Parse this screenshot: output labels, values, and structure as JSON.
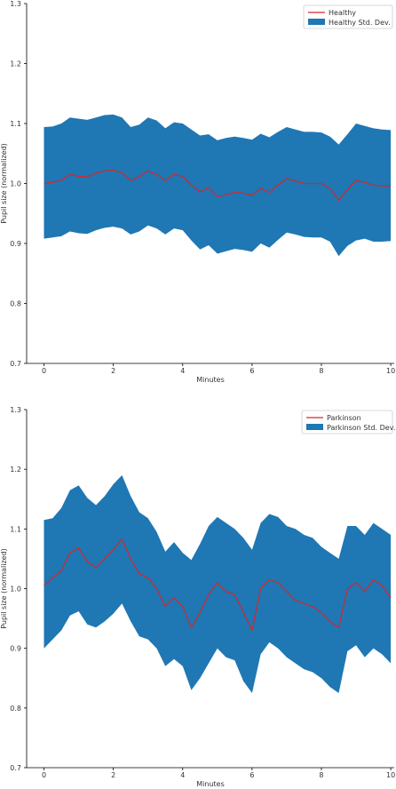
{
  "chart_data": [
    {
      "type": "line",
      "xlabel": "Minutes",
      "ylabel": "Pupil size (normalized)",
      "xlim": [
        -0.5,
        10.1
      ],
      "ylim": [
        0.7,
        1.3
      ],
      "xticks": [
        0,
        2,
        4,
        6,
        8,
        10
      ],
      "yticks": [
        0.7,
        0.8,
        0.9,
        1.0,
        1.1,
        1.2,
        1.3
      ],
      "ytick_labels": [
        "0.7",
        "0.8",
        "0.9",
        "1.0",
        "1.1",
        "1.2",
        "1.3"
      ],
      "legend_position": "top-right",
      "legend": {
        "line": "Healthy",
        "band": "Healthy Std. Dev."
      },
      "colors": {
        "line": "#d62728",
        "band": "#1f77b4"
      },
      "x": [
        0,
        0.25,
        0.5,
        0.75,
        1,
        1.25,
        1.5,
        1.75,
        2,
        2.25,
        2.5,
        2.75,
        3,
        3.25,
        3.5,
        3.75,
        4,
        4.25,
        4.5,
        4.75,
        5,
        5.25,
        5.5,
        5.75,
        6,
        6.25,
        6.5,
        6.75,
        7,
        7.25,
        7.5,
        7.75,
        8,
        8.25,
        8.5,
        8.75,
        9,
        9.25,
        9.5,
        9.75,
        10
      ],
      "series": [
        {
          "name": "Healthy",
          "values": [
            1.0,
            1.002,
            1.005,
            1.015,
            1.012,
            1.011,
            1.017,
            1.021,
            1.022,
            1.018,
            1.005,
            1.011,
            1.021,
            1.015,
            1.005,
            1.015,
            1.012,
            0.998,
            0.986,
            0.993,
            0.978,
            0.981,
            0.985,
            0.984,
            0.98,
            0.992,
            0.985,
            0.998,
            1.008,
            1.004,
            1.0,
            1.0,
            1.0,
            0.992,
            0.972,
            0.99,
            1.005,
            1.002,
            0.997,
            0.996,
            0.996
          ]
        }
      ],
      "band": {
        "name": "Healthy Std. Dev.",
        "upper": [
          1.094,
          1.095,
          1.1,
          1.11,
          1.108,
          1.106,
          1.11,
          1.114,
          1.115,
          1.11,
          1.094,
          1.098,
          1.11,
          1.105,
          1.092,
          1.102,
          1.1,
          1.09,
          1.08,
          1.082,
          1.072,
          1.076,
          1.078,
          1.076,
          1.073,
          1.083,
          1.077,
          1.086,
          1.094,
          1.09,
          1.086,
          1.086,
          1.085,
          1.078,
          1.065,
          1.082,
          1.1,
          1.096,
          1.092,
          1.09,
          1.089
        ],
        "lower": [
          0.908,
          0.91,
          0.912,
          0.92,
          0.917,
          0.916,
          0.922,
          0.926,
          0.928,
          0.925,
          0.915,
          0.92,
          0.93,
          0.925,
          0.915,
          0.925,
          0.922,
          0.905,
          0.89,
          0.897,
          0.883,
          0.887,
          0.891,
          0.889,
          0.886,
          0.9,
          0.893,
          0.906,
          0.918,
          0.915,
          0.911,
          0.91,
          0.91,
          0.903,
          0.879,
          0.896,
          0.905,
          0.908,
          0.903,
          0.903,
          0.904
        ]
      }
    },
    {
      "type": "line",
      "xlabel": "Minutes",
      "ylabel": "Pupil size (normalized)",
      "xlim": [
        -0.5,
        10.1
      ],
      "ylim": [
        0.7,
        1.3
      ],
      "xticks": [
        0,
        2,
        4,
        6,
        8,
        10
      ],
      "yticks": [
        0.7,
        0.8,
        0.9,
        1.0,
        1.1,
        1.2,
        1.3
      ],
      "ytick_labels": [
        "0.7",
        "0.8",
        "0.9",
        "1.0",
        "1.1",
        "1.2",
        "1.3"
      ],
      "legend_position": "top-right",
      "legend": {
        "line": "Parkinson",
        "band": "Parkinson Std. Dev."
      },
      "colors": {
        "line": "#d62728",
        "band": "#1f77b4"
      },
      "x": [
        0,
        0.25,
        0.5,
        0.75,
        1,
        1.25,
        1.5,
        1.75,
        2,
        2.25,
        2.5,
        2.75,
        3,
        3.25,
        3.5,
        3.75,
        4,
        4.25,
        4.5,
        4.75,
        5,
        5.25,
        5.5,
        5.75,
        6,
        6.25,
        6.5,
        6.75,
        7,
        7.25,
        7.5,
        7.75,
        8,
        8.25,
        8.5,
        8.75,
        9,
        9.25,
        9.5,
        9.75,
        10
      ],
      "series": [
        {
          "name": "Parkinson",
          "values": [
            1.005,
            1.018,
            1.03,
            1.06,
            1.068,
            1.045,
            1.035,
            1.05,
            1.065,
            1.083,
            1.05,
            1.025,
            1.018,
            1.0,
            0.97,
            0.985,
            0.97,
            0.935,
            0.96,
            0.99,
            1.01,
            0.995,
            0.99,
            0.96,
            0.93,
            1.0,
            1.015,
            1.01,
            0.995,
            0.98,
            0.975,
            0.97,
            0.96,
            0.945,
            0.935,
            1.0,
            1.01,
            0.995,
            1.015,
            1.005,
            0.985
          ]
        }
      ],
      "band": {
        "name": "Parkinson Std. Dev.",
        "upper": [
          1.115,
          1.118,
          1.135,
          1.165,
          1.173,
          1.152,
          1.14,
          1.155,
          1.175,
          1.19,
          1.155,
          1.128,
          1.118,
          1.095,
          1.062,
          1.078,
          1.06,
          1.048,
          1.075,
          1.105,
          1.12,
          1.11,
          1.1,
          1.085,
          1.065,
          1.11,
          1.125,
          1.12,
          1.105,
          1.1,
          1.09,
          1.085,
          1.07,
          1.06,
          1.05,
          1.105,
          1.105,
          1.09,
          1.11,
          1.1,
          1.09
        ],
        "lower": [
          0.9,
          0.915,
          0.93,
          0.955,
          0.962,
          0.94,
          0.935,
          0.945,
          0.958,
          0.975,
          0.945,
          0.92,
          0.915,
          0.9,
          0.87,
          0.882,
          0.87,
          0.83,
          0.85,
          0.875,
          0.9,
          0.885,
          0.88,
          0.845,
          0.825,
          0.89,
          0.91,
          0.9,
          0.885,
          0.875,
          0.865,
          0.86,
          0.85,
          0.835,
          0.825,
          0.895,
          0.905,
          0.885,
          0.9,
          0.89,
          0.875
        ]
      }
    }
  ]
}
